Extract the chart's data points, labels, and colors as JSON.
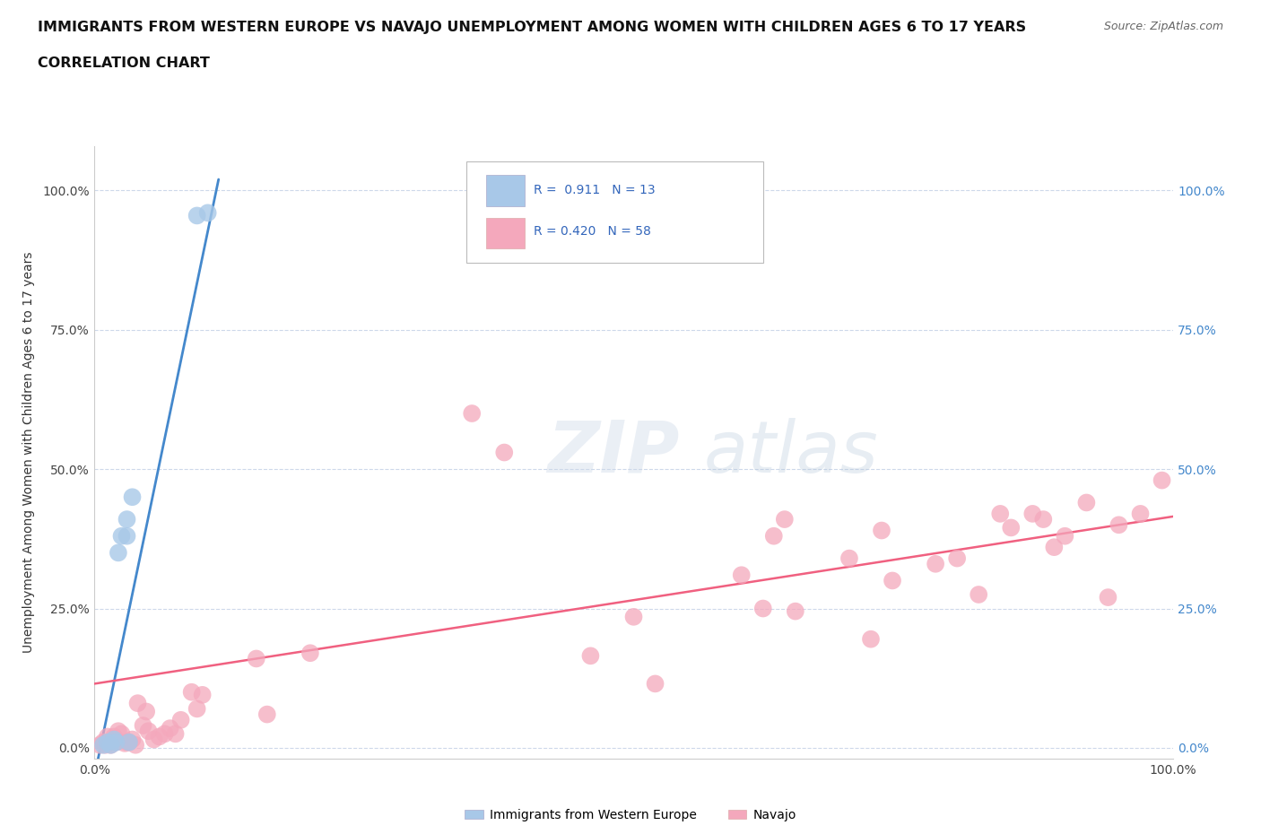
{
  "title_line1": "IMMIGRANTS FROM WESTERN EUROPE VS NAVAJO UNEMPLOYMENT AMONG WOMEN WITH CHILDREN AGES 6 TO 17 YEARS",
  "title_line2": "CORRELATION CHART",
  "source_text": "Source: ZipAtlas.com",
  "ylabel": "Unemployment Among Women with Children Ages 6 to 17 years",
  "xlim": [
    0.0,
    1.0
  ],
  "ylim": [
    -0.02,
    1.08
  ],
  "ytick_labels": [
    "0.0%",
    "25.0%",
    "50.0%",
    "75.0%",
    "100.0%"
  ],
  "ytick_values": [
    0.0,
    0.25,
    0.5,
    0.75,
    1.0
  ],
  "blue_R": "0.911",
  "blue_N": "13",
  "pink_R": "0.420",
  "pink_N": "58",
  "blue_color": "#a8c8e8",
  "pink_color": "#f4a8bc",
  "blue_line_color": "#4488cc",
  "pink_line_color": "#f06080",
  "bg_color": "#ffffff",
  "grid_color": "#c8d4e8",
  "legend_label_blue": "Immigrants from Western Europe",
  "legend_label_pink": "Navajo",
  "blue_scatter_x": [
    0.008,
    0.012,
    0.015,
    0.018,
    0.02,
    0.022,
    0.025,
    0.03,
    0.03,
    0.032,
    0.035,
    0.095,
    0.105
  ],
  "blue_scatter_y": [
    0.005,
    0.01,
    0.005,
    0.015,
    0.01,
    0.35,
    0.38,
    0.38,
    0.41,
    0.01,
    0.45,
    0.955,
    0.96
  ],
  "blue_line_x": [
    0.0,
    0.115
  ],
  "blue_line_y": [
    -0.05,
    1.02
  ],
  "pink_line_x": [
    0.0,
    1.0
  ],
  "pink_line_y": [
    0.115,
    0.415
  ],
  "pink_scatter_x": [
    0.005,
    0.008,
    0.01,
    0.012,
    0.015,
    0.018,
    0.02,
    0.022,
    0.025,
    0.028,
    0.03,
    0.032,
    0.035,
    0.038,
    0.04,
    0.045,
    0.048,
    0.05,
    0.055,
    0.06,
    0.065,
    0.07,
    0.075,
    0.08,
    0.09,
    0.095,
    0.1,
    0.15,
    0.16,
    0.2,
    0.35,
    0.38,
    0.46,
    0.5,
    0.52,
    0.6,
    0.62,
    0.63,
    0.64,
    0.65,
    0.7,
    0.72,
    0.73,
    0.74,
    0.78,
    0.8,
    0.82,
    0.84,
    0.85,
    0.87,
    0.88,
    0.89,
    0.9,
    0.92,
    0.94,
    0.95,
    0.97,
    0.99
  ],
  "pink_scatter_y": [
    0.005,
    0.01,
    0.005,
    0.02,
    0.005,
    0.02,
    0.01,
    0.03,
    0.025,
    0.008,
    0.01,
    0.01,
    0.015,
    0.005,
    0.08,
    0.04,
    0.065,
    0.03,
    0.015,
    0.02,
    0.025,
    0.035,
    0.025,
    0.05,
    0.1,
    0.07,
    0.095,
    0.16,
    0.06,
    0.17,
    0.6,
    0.53,
    0.165,
    0.235,
    0.115,
    0.31,
    0.25,
    0.38,
    0.41,
    0.245,
    0.34,
    0.195,
    0.39,
    0.3,
    0.33,
    0.34,
    0.275,
    0.42,
    0.395,
    0.42,
    0.41,
    0.36,
    0.38,
    0.44,
    0.27,
    0.4,
    0.42,
    0.48
  ]
}
